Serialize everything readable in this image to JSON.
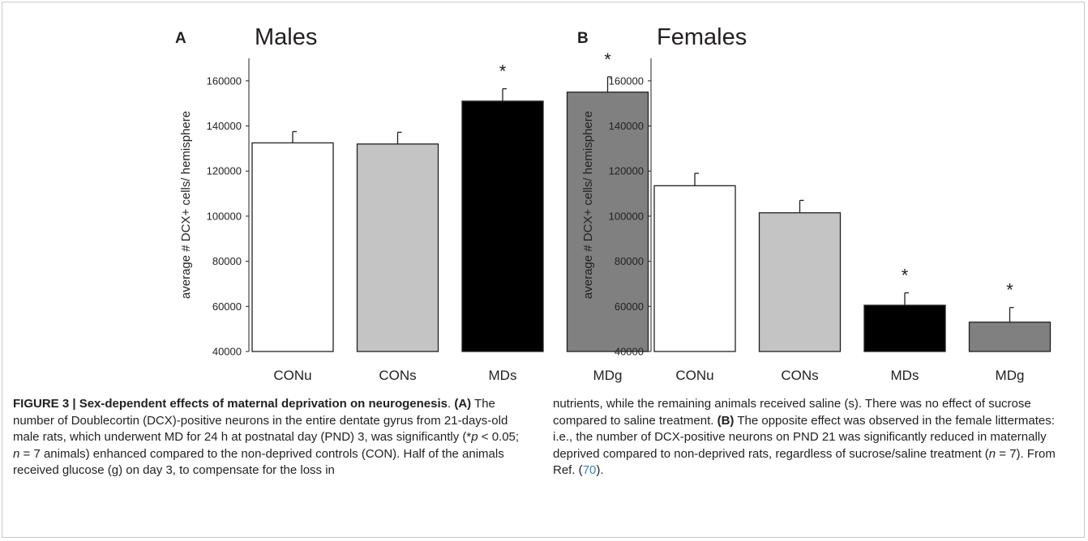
{
  "chart_data": [
    {
      "type": "bar",
      "panel_letter": "A",
      "title": "Males",
      "ylabel": "average # DCX+ cells/ hemisphere",
      "xlabel": "",
      "categories": [
        "CONu",
        "CONs",
        "MDs",
        "MDg"
      ],
      "values": [
        132500,
        132000,
        151000,
        155000
      ],
      "errors": [
        5000,
        5200,
        5500,
        6800
      ],
      "significance": [
        "",
        "",
        "*",
        "*"
      ],
      "bar_colors": [
        "#ffffff",
        "#c4c4c4",
        "#000000",
        "#808080"
      ],
      "ylim": [
        40000,
        170000
      ],
      "yticks": [
        40000,
        60000,
        80000,
        100000,
        120000,
        140000,
        160000
      ],
      "ytick_labels": [
        "40000",
        "60000",
        "80000",
        "100000",
        "120000",
        "140000",
        "160000"
      ],
      "grid": false,
      "legend": "none"
    },
    {
      "type": "bar",
      "panel_letter": "B",
      "title": "Females",
      "ylabel": "average # DCX+ cells/ hemisphere",
      "xlabel": "",
      "categories": [
        "CONu",
        "CONs",
        "MDs",
        "MDg"
      ],
      "values": [
        113500,
        101500,
        60500,
        53000
      ],
      "errors": [
        5500,
        5500,
        5500,
        6500
      ],
      "significance": [
        "",
        "",
        "*",
        "*"
      ],
      "bar_colors": [
        "#ffffff",
        "#c4c4c4",
        "#000000",
        "#808080"
      ],
      "ylim": [
        40000,
        170000
      ],
      "yticks": [
        40000,
        60000,
        80000,
        100000,
        120000,
        140000,
        160000
      ],
      "ytick_labels": [
        "40000",
        "60000",
        "80000",
        "100000",
        "120000",
        "140000",
        "160000"
      ],
      "grid": false,
      "legend": "none"
    }
  ],
  "caption": {
    "fig_label": "FIGURE 3 | Sex-dependent effects of maternal deprivation on neurogenesis",
    "after_label": ". ",
    "a_label": "(A)",
    "a_text_1": " The number of Doublecortin (DCX)-positive neurons in the entire dentate gyrus from 21-days-old male rats, which underwent MD for 24 h at postnatal day (PND) 3, was significantly (",
    "a_star": "*",
    "a_p": "p",
    "a_p_value": " < 0.05; ",
    "a_n": "n",
    "a_n_value": " = 7 animals) enhanced compared to the non-deprived controls (CON). Half of the animals received glucose (g) on day 3, to compensate for the loss in",
    "right_text_1": "nutrients, while the remaining animals received saline (s). There was no effect of sucrose compared to saline treatment. ",
    "b_label": "(B)",
    "b_text_1": " The opposite effect was observed in the female littermates: i.e., the number of DCX-positive neurons on PND 21 was significantly reduced in maternally deprived compared to non-deprived rats, regardless of sucrose/saline treatment (",
    "b_n": "n",
    "b_n_value": " = 7). From Ref. (",
    "ref_num": "70",
    "ref_close": ")."
  }
}
